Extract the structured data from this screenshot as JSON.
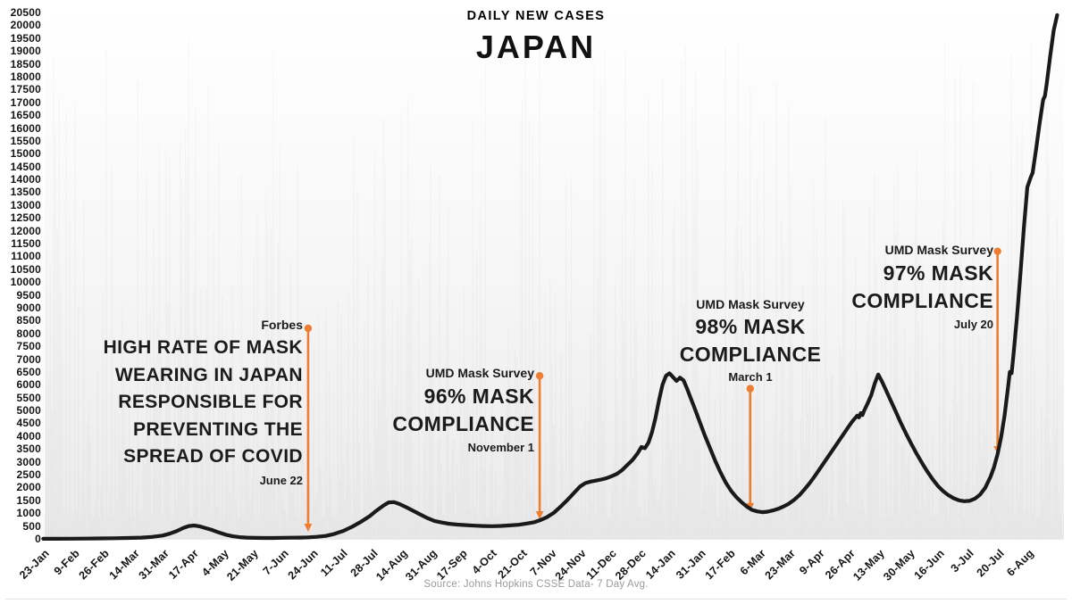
{
  "header": {
    "subtitle": "DAILY NEW CASES",
    "title": "JAPAN"
  },
  "footer": {
    "source": "Source: Johns Hopkins CSSE Data- 7 Day Avg."
  },
  "colors": {
    "accent_orange": "#ED7D31",
    "line_black": "#1a1a1a",
    "axis_text": "#141414",
    "source_gray": "#9b9b9b"
  },
  "annotations": [
    {
      "source": "Forbes",
      "headline": "HIGH RATE OF MASK WEARING IN JAPAN RESPONSIBLE FOR PREVENTING THE SPREAD OF COVID",
      "date_label": "June 22",
      "arrow": {
        "day": 151,
        "from_value": 8200,
        "to_value": 280
      }
    },
    {
      "source": "UMD Mask Survey",
      "headline": "96% MASK COMPLIANCE",
      "date_label": "November 1",
      "arrow": {
        "day": 283,
        "from_value": 6350,
        "to_value": 760
      }
    },
    {
      "source": "UMD Mask Survey",
      "headline": "98% MASK COMPLIANCE",
      "date_label": "March 1",
      "arrow": {
        "day": 403,
        "from_value": 5850,
        "to_value": 1080
      }
    },
    {
      "source": "UMD Mask Survey",
      "headline": "97% MASK COMPLIANCE",
      "date_label": "July 20",
      "arrow": {
        "day": 544,
        "from_value": 11200,
        "to_value": 3300
      }
    }
  ],
  "chart_data": {
    "type": "line",
    "title": "DAILY NEW CASES - JAPAN",
    "xlabel": "",
    "ylabel": "",
    "ylim": [
      0,
      20500
    ],
    "y_tick_step": 500,
    "grid": "off",
    "legend": "none",
    "y_ticks": [
      20500,
      20000,
      19500,
      19000,
      18500,
      18000,
      17500,
      17000,
      16500,
      16000,
      15500,
      15000,
      14500,
      14000,
      13500,
      13000,
      12500,
      12000,
      11500,
      11000,
      10500,
      10000,
      9500,
      9000,
      8500,
      8000,
      7500,
      7000,
      6500,
      6000,
      5500,
      5000,
      4500,
      4000,
      3500,
      3000,
      2500,
      2000,
      1500,
      1000,
      500,
      0
    ],
    "x_ticks": [
      "23-Jan",
      "9-Feb",
      "26-Feb",
      "14-Mar",
      "31-Mar",
      "17-Apr",
      "4-May",
      "21-May",
      "7-Jun",
      "24-Jun",
      "11-Jul",
      "28-Jul",
      "14-Aug",
      "31-Aug",
      "17-Sep",
      "4-Oct",
      "21-Oct",
      "7-Nov",
      "24-Nov",
      "11-Dec",
      "28-Dec",
      "14-Jan",
      "31-Jan",
      "17-Feb",
      "6-Mar",
      "23-Mar",
      "9-Apr",
      "26-Apr",
      "13-May",
      "30-May",
      "16-Jun",
      "3-Jul",
      "20-Jul",
      "6-Aug"
    ],
    "x_tick_interval_days": 17,
    "x_start_date": "23-Jan",
    "series": [
      {
        "name": "Daily new cases (7 day average)",
        "points": [
          [
            0,
            2
          ],
          [
            8,
            3
          ],
          [
            16,
            6
          ],
          [
            24,
            10
          ],
          [
            32,
            16
          ],
          [
            40,
            25
          ],
          [
            48,
            35
          ],
          [
            56,
            48
          ],
          [
            62,
            75
          ],
          [
            68,
            130
          ],
          [
            72,
            200
          ],
          [
            76,
            300
          ],
          [
            80,
            430
          ],
          [
            83,
            500
          ],
          [
            86,
            520
          ],
          [
            89,
            490
          ],
          [
            92,
            430
          ],
          [
            96,
            350
          ],
          [
            100,
            250
          ],
          [
            104,
            165
          ],
          [
            108,
            100
          ],
          [
            112,
            65
          ],
          [
            116,
            48
          ],
          [
            121,
            38
          ],
          [
            126,
            34
          ],
          [
            131,
            36
          ],
          [
            136,
            40
          ],
          [
            141,
            45
          ],
          [
            146,
            50
          ],
          [
            151,
            58
          ],
          [
            156,
            80
          ],
          [
            161,
            115
          ],
          [
            166,
            195
          ],
          [
            171,
            310
          ],
          [
            176,
            470
          ],
          [
            181,
            660
          ],
          [
            186,
            880
          ],
          [
            190,
            1100
          ],
          [
            194,
            1300
          ],
          [
            197,
            1420
          ],
          [
            200,
            1430
          ],
          [
            203,
            1360
          ],
          [
            207,
            1230
          ],
          [
            211,
            1090
          ],
          [
            215,
            950
          ],
          [
            219,
            810
          ],
          [
            223,
            700
          ],
          [
            227,
            640
          ],
          [
            231,
            590
          ],
          [
            236,
            555
          ],
          [
            241,
            535
          ],
          [
            246,
            515
          ],
          [
            251,
            500
          ],
          [
            256,
            495
          ],
          [
            261,
            505
          ],
          [
            266,
            525
          ],
          [
            271,
            550
          ],
          [
            276,
            600
          ],
          [
            280,
            650
          ],
          [
            283,
            720
          ],
          [
            287,
            840
          ],
          [
            291,
            1010
          ],
          [
            295,
            1260
          ],
          [
            299,
            1530
          ],
          [
            303,
            1820
          ],
          [
            306,
            2040
          ],
          [
            309,
            2170
          ],
          [
            312,
            2230
          ],
          [
            315,
            2270
          ],
          [
            318,
            2310
          ],
          [
            321,
            2360
          ],
          [
            324,
            2440
          ],
          [
            327,
            2530
          ],
          [
            330,
            2680
          ],
          [
            333,
            2880
          ],
          [
            336,
            3080
          ],
          [
            339,
            3350
          ],
          [
            341,
            3580
          ],
          [
            343,
            3530
          ],
          [
            345,
            3750
          ],
          [
            347,
            4150
          ],
          [
            349,
            4700
          ],
          [
            351,
            5400
          ],
          [
            353,
            6000
          ],
          [
            355,
            6350
          ],
          [
            357,
            6450
          ],
          [
            359,
            6300
          ],
          [
            361,
            6150
          ],
          [
            363,
            6280
          ],
          [
            365,
            6170
          ],
          [
            367,
            5850
          ],
          [
            369,
            5500
          ],
          [
            371,
            5150
          ],
          [
            374,
            4600
          ],
          [
            377,
            4050
          ],
          [
            380,
            3550
          ],
          [
            383,
            3050
          ],
          [
            386,
            2600
          ],
          [
            389,
            2200
          ],
          [
            392,
            1880
          ],
          [
            395,
            1630
          ],
          [
            398,
            1430
          ],
          [
            401,
            1260
          ],
          [
            404,
            1130
          ],
          [
            407,
            1070
          ],
          [
            410,
            1040
          ],
          [
            413,
            1060
          ],
          [
            416,
            1110
          ],
          [
            419,
            1170
          ],
          [
            422,
            1260
          ],
          [
            425,
            1370
          ],
          [
            428,
            1520
          ],
          [
            431,
            1700
          ],
          [
            434,
            1930
          ],
          [
            437,
            2180
          ],
          [
            440,
            2460
          ],
          [
            443,
            2760
          ],
          [
            446,
            3060
          ],
          [
            449,
            3360
          ],
          [
            452,
            3660
          ],
          [
            455,
            3960
          ],
          [
            457,
            4160
          ],
          [
            459,
            4360
          ],
          [
            461,
            4560
          ],
          [
            463,
            4720
          ],
          [
            464,
            4800
          ],
          [
            465,
            4730
          ],
          [
            466,
            4900
          ],
          [
            467,
            4820
          ],
          [
            468,
            5000
          ],
          [
            470,
            5280
          ],
          [
            472,
            5600
          ],
          [
            474,
            6050
          ],
          [
            476,
            6400
          ],
          [
            478,
            6150
          ],
          [
            480,
            5850
          ],
          [
            483,
            5400
          ],
          [
            486,
            4950
          ],
          [
            489,
            4500
          ],
          [
            492,
            4080
          ],
          [
            495,
            3680
          ],
          [
            498,
            3300
          ],
          [
            501,
            2950
          ],
          [
            504,
            2620
          ],
          [
            507,
            2320
          ],
          [
            510,
            2060
          ],
          [
            513,
            1860
          ],
          [
            516,
            1700
          ],
          [
            519,
            1580
          ],
          [
            522,
            1500
          ],
          [
            525,
            1465
          ],
          [
            528,
            1480
          ],
          [
            531,
            1560
          ],
          [
            534,
            1720
          ],
          [
            537,
            1990
          ],
          [
            540,
            2420
          ],
          [
            542,
            2790
          ],
          [
            544,
            3300
          ],
          [
            546,
            3950
          ],
          [
            548,
            4800
          ],
          [
            550,
            5900
          ],
          [
            551,
            6500
          ],
          [
            552,
            6450
          ],
          [
            553,
            7100
          ],
          [
            555,
            8600
          ],
          [
            557,
            10300
          ],
          [
            559,
            12100
          ],
          [
            561,
            13700
          ],
          [
            563,
            14100
          ],
          [
            564,
            14250
          ],
          [
            566,
            15200
          ],
          [
            568,
            16200
          ],
          [
            570,
            17100
          ],
          [
            571,
            17250
          ],
          [
            572,
            17700
          ],
          [
            574,
            18800
          ],
          [
            576,
            19800
          ],
          [
            578,
            20400
          ]
        ]
      }
    ]
  }
}
